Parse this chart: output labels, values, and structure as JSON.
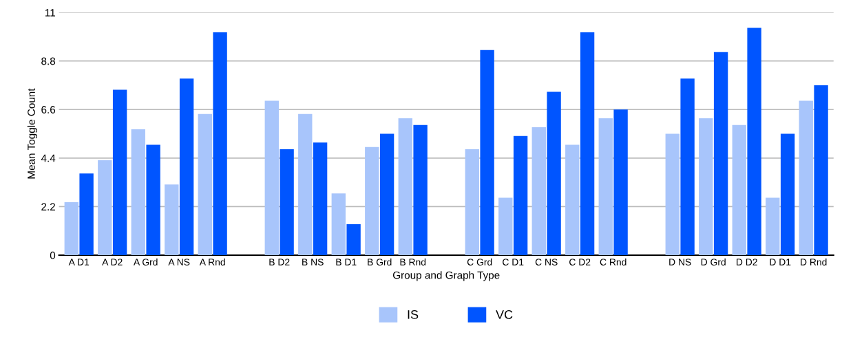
{
  "chart_data": {
    "type": "bar",
    "xlabel": "Group and Graph Type",
    "ylabel": "Mean Toggle Count",
    "categories": [
      "A D1",
      "A D2",
      "A Grd",
      "A NS",
      "A Rnd",
      null,
      "B D2",
      "B NS",
      "B D1",
      "B Grd",
      "B Rnd",
      null,
      "C Grd",
      "C D1",
      "C NS",
      "C D2",
      "C Rnd",
      null,
      "D NS",
      "D Grd",
      "D D2",
      "D D1",
      "D Rnd"
    ],
    "series": [
      {
        "name": "IS",
        "color": "#a8c5fb",
        "values": [
          2.4,
          4.3,
          5.7,
          3.2,
          6.4,
          null,
          7.0,
          6.4,
          2.8,
          4.9,
          6.2,
          null,
          4.8,
          2.6,
          5.8,
          5.0,
          6.2,
          null,
          5.5,
          6.2,
          5.9,
          2.6,
          7.0
        ]
      },
      {
        "name": "VC",
        "color": "#0055ff",
        "values": [
          3.7,
          7.5,
          5.0,
          8.0,
          10.1,
          null,
          4.8,
          5.1,
          1.4,
          5.5,
          5.9,
          null,
          9.3,
          5.4,
          7.4,
          10.1,
          6.6,
          null,
          8.0,
          9.2,
          10.3,
          5.5,
          7.7
        ]
      }
    ],
    "ylim": [
      0,
      11
    ],
    "yticks": [
      0,
      2.2,
      4.4,
      6.6,
      8.8,
      11
    ],
    "grid": "y",
    "legend": "bottom"
  }
}
